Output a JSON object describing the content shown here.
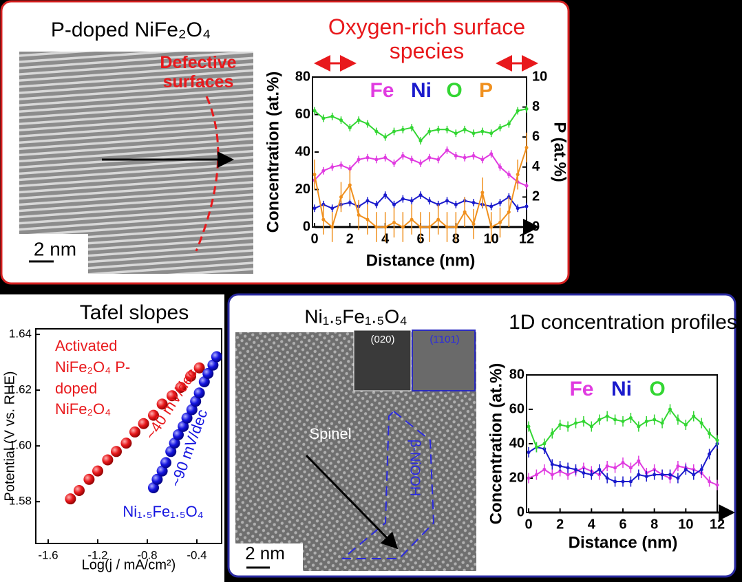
{
  "images": [
    {
      "title": "P-doped NiFe₂O₄",
      "annotation": "Defective surfaces",
      "scale_bar": "2 nm"
    },
    {
      "title": "Ni₁.₅Fe₁.₅O₄",
      "inset_labels": [
        "(020)",
        "(1̄101)"
      ],
      "phase_labels": [
        "Spinel",
        "β-NiOOH"
      ],
      "scale_bar": "2 nm"
    }
  ],
  "chart_data": [
    {
      "type": "line",
      "title": "Oxygen-rich surface species",
      "x_label": "Distance (nm)",
      "y_label": "Concentration (at.%)",
      "y2_label": "P (at.%)",
      "x": [
        0,
        0.5,
        1,
        1.5,
        2,
        2.5,
        3,
        3.5,
        4,
        4.5,
        5,
        5.5,
        6,
        6.5,
        7,
        7.5,
        8,
        8.5,
        9,
        9.5,
        10,
        10.5,
        11,
        11.5,
        12
      ],
      "xlim": [
        0,
        12
      ],
      "xticks": [
        0,
        2,
        4,
        6,
        8,
        10,
        12
      ],
      "ylim": [
        0,
        80
      ],
      "yticks": [
        0,
        20,
        40,
        60,
        80
      ],
      "y2lim": [
        0,
        10
      ],
      "y2ticks": [
        0,
        2,
        4,
        6,
        8,
        10
      ],
      "series": [
        {
          "name": "Fe",
          "color": "#e03be0",
          "error": 2,
          "values": [
            25,
            30,
            32,
            33,
            31,
            36,
            37,
            36,
            37,
            34,
            38,
            36,
            34,
            37,
            36,
            41,
            38,
            37,
            38,
            36,
            39,
            32,
            28,
            24,
            22
          ]
        },
        {
          "name": "Ni",
          "color": "#1a1acc",
          "error": 2,
          "values": [
            10,
            12,
            10,
            12,
            13,
            11,
            14,
            12,
            17,
            12,
            15,
            14,
            17,
            14,
            12,
            14,
            12,
            14,
            13,
            12,
            11,
            13,
            16,
            10,
            11
          ]
        },
        {
          "name": "O",
          "color": "#33d633",
          "error": 2,
          "values": [
            62,
            58,
            59,
            57,
            53,
            57,
            55,
            51,
            48,
            51,
            52,
            53,
            46,
            51,
            52,
            52,
            50,
            52,
            50,
            51,
            50,
            53,
            55,
            62,
            63
          ]
        },
        {
          "name": "P",
          "color": "#f0901e",
          "error": 1,
          "axis": "y2",
          "values": [
            3.5,
            0.5,
            0,
            2,
            2.8,
            0.8,
            0.5,
            0,
            0,
            0.3,
            0,
            0.5,
            0,
            0,
            0.5,
            0,
            0,
            1,
            0.2,
            2.3,
            0,
            0.3,
            1,
            3.5,
            5.3
          ]
        }
      ]
    },
    {
      "type": "scatter",
      "title": "Tafel slopes",
      "x_label": "Log(j / mA/cm²)",
      "y_label": "Potential (V vs. RHE)",
      "xlim": [
        -1.7,
        -0.2
      ],
      "xticks": [
        -1.6,
        -1.2,
        -0.8,
        -0.4
      ],
      "ylim": [
        1.565,
        1.642
      ],
      "yticks": [
        1.58,
        {
          "value": 1.6,
          "label": "1.60"
        },
        1.62,
        1.64
      ],
      "series": [
        {
          "name": "Activated NiFe₂O₄ P-doped NiFe₂O₄",
          "color": "#e8191c",
          "x": [
            -1.42,
            -1.35,
            -1.27,
            -1.2,
            -1.12,
            -1.05,
            -0.97,
            -0.9,
            -0.83,
            -0.75,
            -0.68,
            -0.6,
            -0.53,
            -0.45,
            -0.38
          ],
          "values": [
            1.581,
            1.584,
            1.588,
            1.591,
            1.595,
            1.598,
            1.601,
            1.605,
            1.608,
            1.611,
            1.615,
            1.618,
            1.621,
            1.625,
            1.628
          ]
        },
        {
          "name": "Ni₁.₅Fe₁.₅O₄",
          "color": "#1515e0",
          "x": [
            -0.75,
            -0.72,
            -0.68,
            -0.65,
            -0.61,
            -0.58,
            -0.55,
            -0.51,
            -0.48,
            -0.44,
            -0.41,
            -0.38,
            -0.34,
            -0.31,
            -0.27,
            -0.24
          ],
          "values": [
            1.585,
            1.588,
            1.591,
            1.594,
            1.598,
            1.601,
            1.604,
            1.607,
            1.61,
            1.613,
            1.616,
            1.619,
            1.623,
            1.626,
            1.629,
            1.632
          ]
        }
      ],
      "annotations": [
        "~40 mV/dec",
        "~90 mV/dec"
      ]
    },
    {
      "type": "line",
      "title": "1D concentration profiles",
      "x_label": "Distance (nm)",
      "y_label": "Concentration (at.%)",
      "x": [
        0,
        0.5,
        1,
        1.5,
        2,
        2.5,
        3,
        3.5,
        4,
        4.5,
        5,
        5.5,
        6,
        6.5,
        7,
        7.5,
        8,
        8.5,
        9,
        9.5,
        10,
        10.5,
        11,
        11.5,
        12
      ],
      "xlim": [
        0,
        12
      ],
      "xticks": [
        0,
        2,
        4,
        6,
        8,
        10,
        12
      ],
      "ylim": [
        0,
        80
      ],
      "yticks": [
        0,
        20,
        40,
        60,
        80
      ],
      "series": [
        {
          "name": "Fe",
          "color": "#e03be0",
          "error": 3,
          "values": [
            20,
            22,
            25,
            22,
            24,
            22,
            24,
            26,
            24,
            22,
            27,
            26,
            29,
            26,
            30,
            23,
            25,
            22,
            20,
            27,
            26,
            25,
            23,
            18,
            16
          ]
        },
        {
          "name": "Ni",
          "color": "#1a1acc",
          "error": 3,
          "values": [
            35,
            38,
            37,
            28,
            27,
            26,
            25,
            23,
            22,
            25,
            20,
            18,
            18,
            18,
            22,
            21,
            22,
            22,
            22,
            20,
            25,
            22,
            25,
            34,
            40
          ]
        },
        {
          "name": "O",
          "color": "#33d633",
          "error": 3,
          "values": [
            50,
            38,
            40,
            46,
            51,
            50,
            52,
            53,
            50,
            54,
            56,
            54,
            53,
            55,
            50,
            53,
            54,
            52,
            60,
            54,
            51,
            56,
            52,
            46,
            42
          ]
        }
      ]
    }
  ]
}
